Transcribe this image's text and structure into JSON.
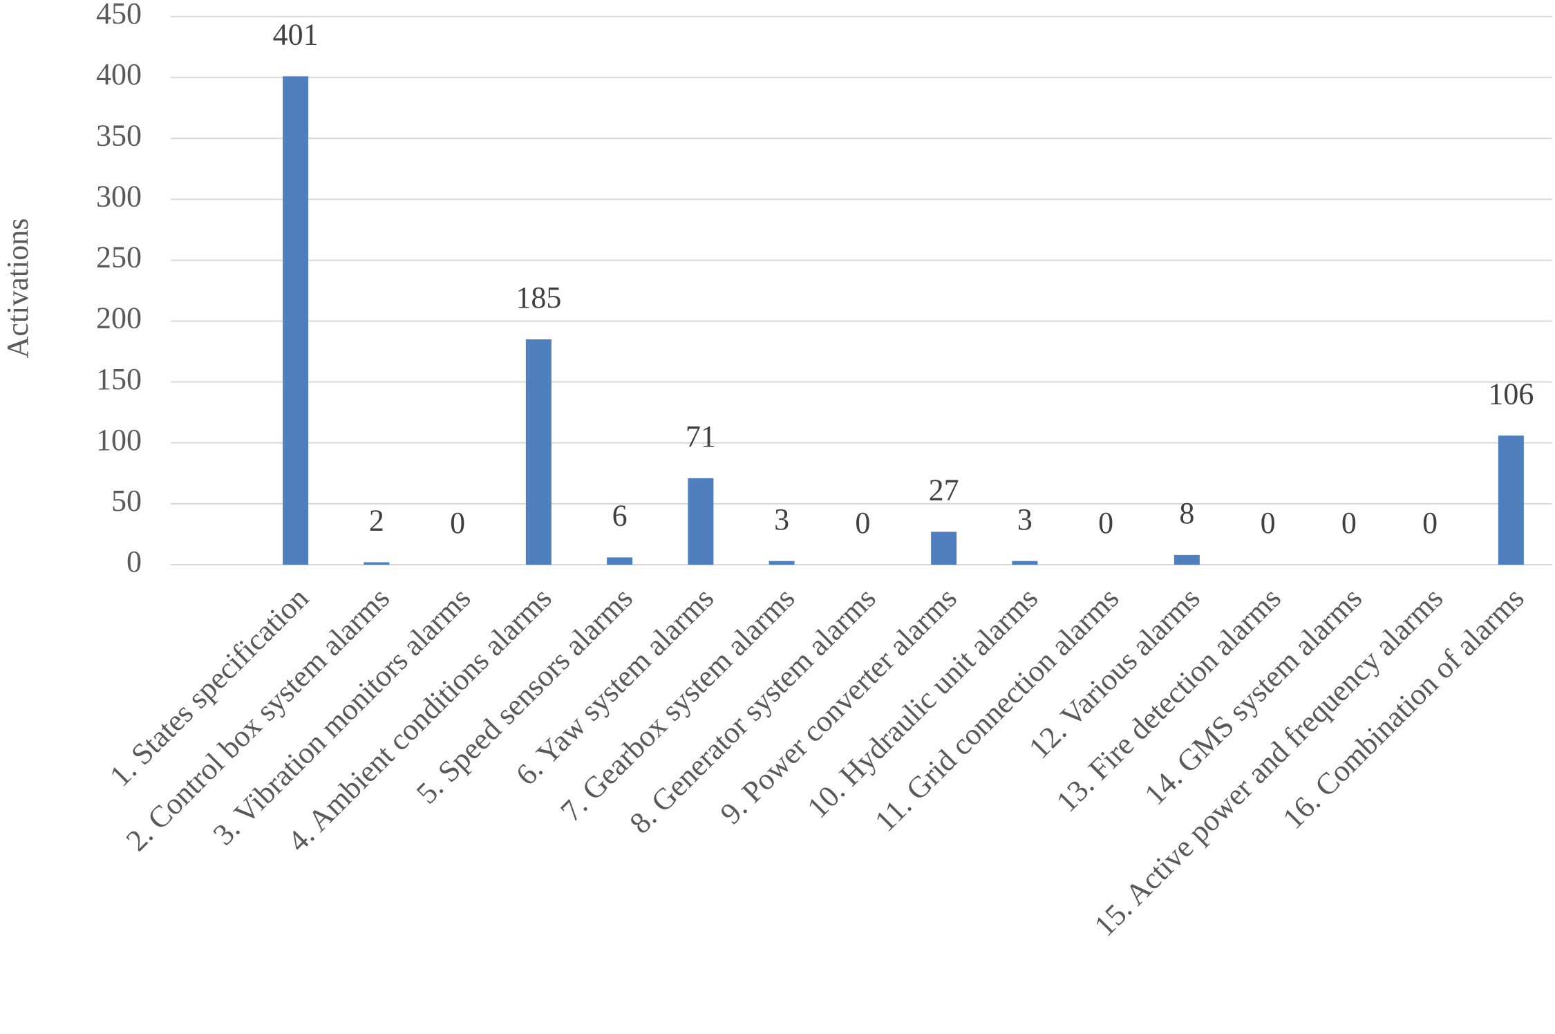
{
  "chart_data": {
    "type": "bar",
    "y_label": "Activations",
    "categories": [
      "1. States specification",
      "2. Control box system alarms",
      "3. Vibration monitors alarms",
      "4. Ambient conditions alarms",
      "5. Speed sensors alarms",
      "6. Yaw system alarms",
      "7. Gearbox system alarms",
      "8. Generator system alarms",
      "9. Power converter alarms",
      "10. Hydraulic unit alarms",
      "11. Grid connection alarms",
      "12. Various alarms",
      "13. Fire detection alarms",
      "14. GMS system alarms",
      "15. Active power and frequency alarms",
      "16. Combination of alarms"
    ],
    "values": [
      401,
      2,
      0,
      185,
      6,
      71,
      3,
      0,
      27,
      3,
      0,
      8,
      0,
      0,
      0,
      106
    ],
    "color": "#4f7fbf",
    "ylim": [
      0,
      450
    ],
    "yticks": [
      0,
      50,
      100,
      150,
      200,
      250,
      300,
      350,
      400,
      450
    ],
    "grid": true,
    "data_labels": true
  }
}
